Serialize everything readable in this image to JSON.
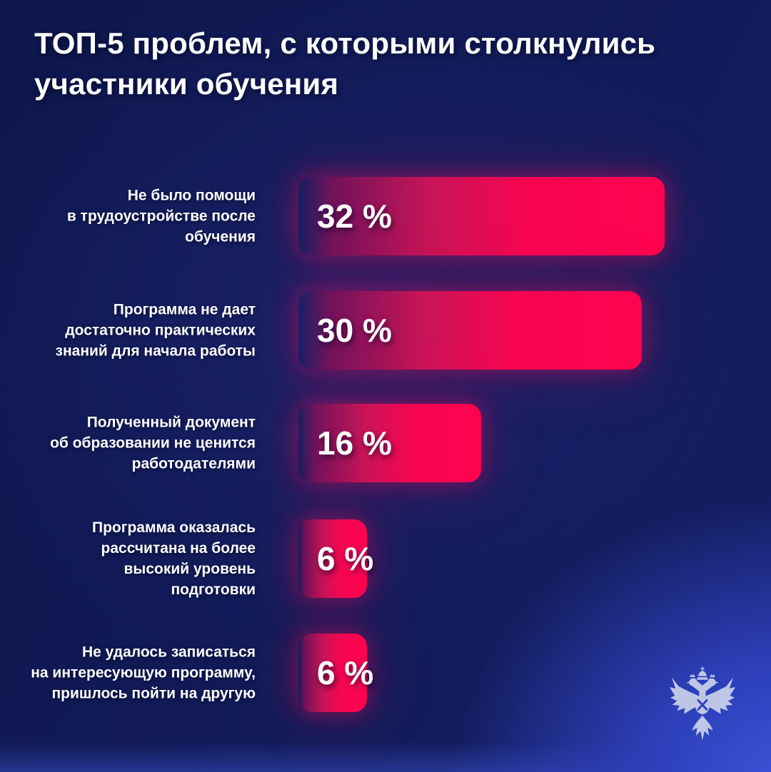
{
  "page": {
    "background_base": "#111a56",
    "background_glow_bottom_right": "#3c51d8",
    "text_color": "#ffffff"
  },
  "header": {
    "title": "ТОП-5 проблем, с которыми столкнулись участники обучения",
    "title_lines": [
      "ТОП-5 проблем, с которыми столкнулись",
      "участники обучения"
    ]
  },
  "chart_data": {
    "type": "bar",
    "orientation": "horizontal",
    "title": "ТОП-5 проблем, с которыми столкнулись участники обучения",
    "xlabel": "",
    "ylabel": "",
    "xlim": [
      0,
      32
    ],
    "grid": false,
    "legend": false,
    "bar_gradient": [
      "#7a115a",
      "#c81457",
      "#ff0350"
    ],
    "categories": [
      "Не было помощи в трудоустройстве после обучения",
      "Программа не дает достаточно практических знаний  для начала работы",
      "Полученный документ об образовании не ценится работодателями",
      "Программа оказалась рассчитана на более высокий уровень подготовки",
      "Не удалось записаться на интересующую программу, пришлось пойти на другую"
    ],
    "values": [
      32,
      30,
      16,
      6,
      6
    ],
    "rows": [
      {
        "label_lines": [
          "Не было помощи",
          "в трудоустройстве после",
          "обучения"
        ],
        "value": 32,
        "value_label": "32 %"
      },
      {
        "label_lines": [
          "Программа не дает",
          "достаточно практических",
          "знаний  для начала работы"
        ],
        "value": 30,
        "value_label": "30 %"
      },
      {
        "label_lines": [
          "Полученный документ",
          "об образовании не ценится",
          "работодателями"
        ],
        "value": 16,
        "value_label": "16 %"
      },
      {
        "label_lines": [
          "Программа оказалась",
          "рассчитана на более",
          "высокий уровень",
          "подготовки"
        ],
        "value": 6,
        "value_label": "6 %"
      },
      {
        "label_lines": [
          "Не удалось записаться",
          "на интересующую программу,",
          "пришлось пойти на другую"
        ],
        "value": 6,
        "value_label": "6 %"
      }
    ]
  },
  "footer": {
    "emblem_name": "double-headed-eagle-emblem",
    "emblem_color": "#c9d1ea"
  }
}
